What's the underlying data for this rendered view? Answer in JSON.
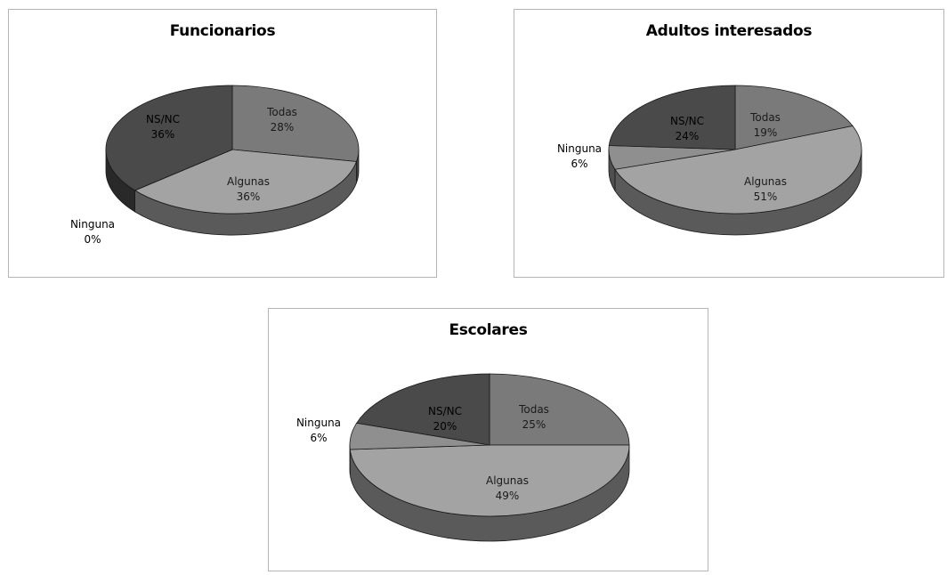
{
  "chart_data": [
    {
      "type": "pie",
      "title": "Funcionarios",
      "slices": [
        {
          "label": "Todas",
          "value": 28,
          "value_label": "28%"
        },
        {
          "label": "Algunas",
          "value": 36,
          "value_label": "36%"
        },
        {
          "label": "Ninguna",
          "value": 0,
          "value_label": "0%"
        },
        {
          "label": "NS/NC",
          "value": 36,
          "value_label": "36%"
        }
      ]
    },
    {
      "type": "pie",
      "title": "Adultos interesados",
      "slices": [
        {
          "label": "Todas",
          "value": 19,
          "value_label": "19%"
        },
        {
          "label": "Algunas",
          "value": 51,
          "value_label": "51%"
        },
        {
          "label": "Ninguna",
          "value": 6,
          "value_label": "6%"
        },
        {
          "label": "NS/NC",
          "value": 24,
          "value_label": "24%"
        }
      ]
    },
    {
      "type": "pie",
      "title": "Escolares",
      "slices": [
        {
          "label": "Todas",
          "value": 25,
          "value_label": "25%"
        },
        {
          "label": "Algunas",
          "value": 49,
          "value_label": "49%"
        },
        {
          "label": "Ninguna",
          "value": 6,
          "value_label": "6%"
        },
        {
          "label": "NS/NC",
          "value": 20,
          "value_label": "20%"
        }
      ]
    }
  ],
  "colors": {
    "Todas": "#7a7a7a",
    "Algunas": "#a3a3a3",
    "Ninguna": "#8f8f8f",
    "NS/NC": "#4a4a4a"
  }
}
